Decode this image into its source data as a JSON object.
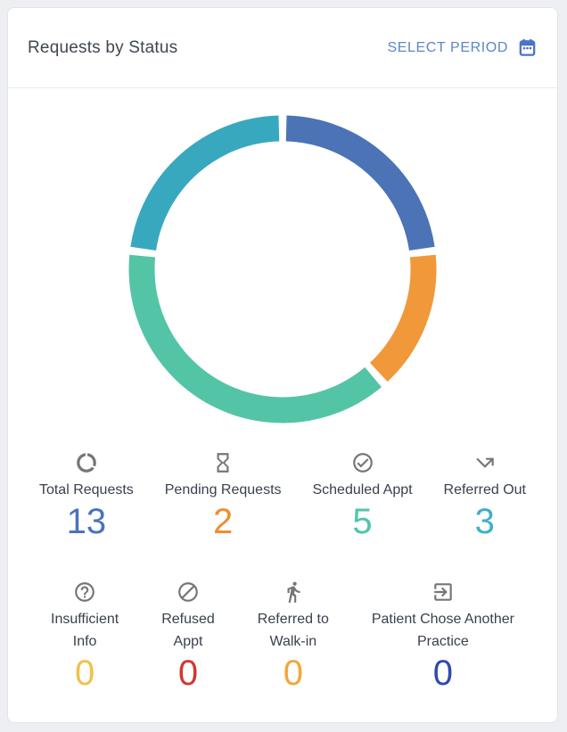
{
  "header": {
    "title": "Requests by Status",
    "select_period_label": "SELECT PERIOD",
    "select_period_color": "#5b87c9",
    "calendar_icon_color": "#4a74cc"
  },
  "chart_data": {
    "type": "donut",
    "title": "Requests by Status",
    "total": 13,
    "start_angle_deg": -90,
    "direction": "clockwise",
    "gap_deg": 3,
    "ring_thickness_px": 29,
    "segments": [
      {
        "name": "blue-segment",
        "value": 3,
        "color": "#4b73b5"
      },
      {
        "name": "orange-segment",
        "value": 2,
        "color": "#f0983a"
      },
      {
        "name": "green-segment",
        "value": 5,
        "color": "#54c4a6"
      },
      {
        "name": "cyan-segment",
        "value": 3,
        "color": "#38a8bf"
      }
    ],
    "legend_position": "below",
    "grid": false
  },
  "stats": {
    "row1": [
      {
        "icon": "data-usage-icon",
        "label": "Total Requests",
        "value": "13",
        "color": "#4a74ba"
      },
      {
        "icon": "hourglass-icon",
        "label": "Pending Requests",
        "value": "2",
        "color": "#ee8e31"
      },
      {
        "icon": "check-circle-icon",
        "label": "Scheduled Appt",
        "value": "5",
        "color": "#4fc5ac"
      },
      {
        "icon": "referred-out-arrow-icon",
        "label": "Referred Out",
        "value": "3",
        "color": "#41aec8"
      }
    ],
    "row2": [
      {
        "icon": "help-circle-icon",
        "label_line1": "Insufficient",
        "label_line2": "Info",
        "value": "0",
        "color": "#f0c24d"
      },
      {
        "icon": "block-icon",
        "label_line1": "Refused",
        "label_line2": "Appt",
        "value": "0",
        "color": "#cd3a32"
      },
      {
        "icon": "walking-person-icon",
        "label_line1": "Referred to",
        "label_line2": "Walk-in",
        "value": "0",
        "color": "#f2a63d"
      },
      {
        "icon": "exit-to-app-icon",
        "label_line1": "Patient Chose Another",
        "label_line2": "Practice",
        "value": "0",
        "color": "#3049b0"
      }
    ]
  }
}
